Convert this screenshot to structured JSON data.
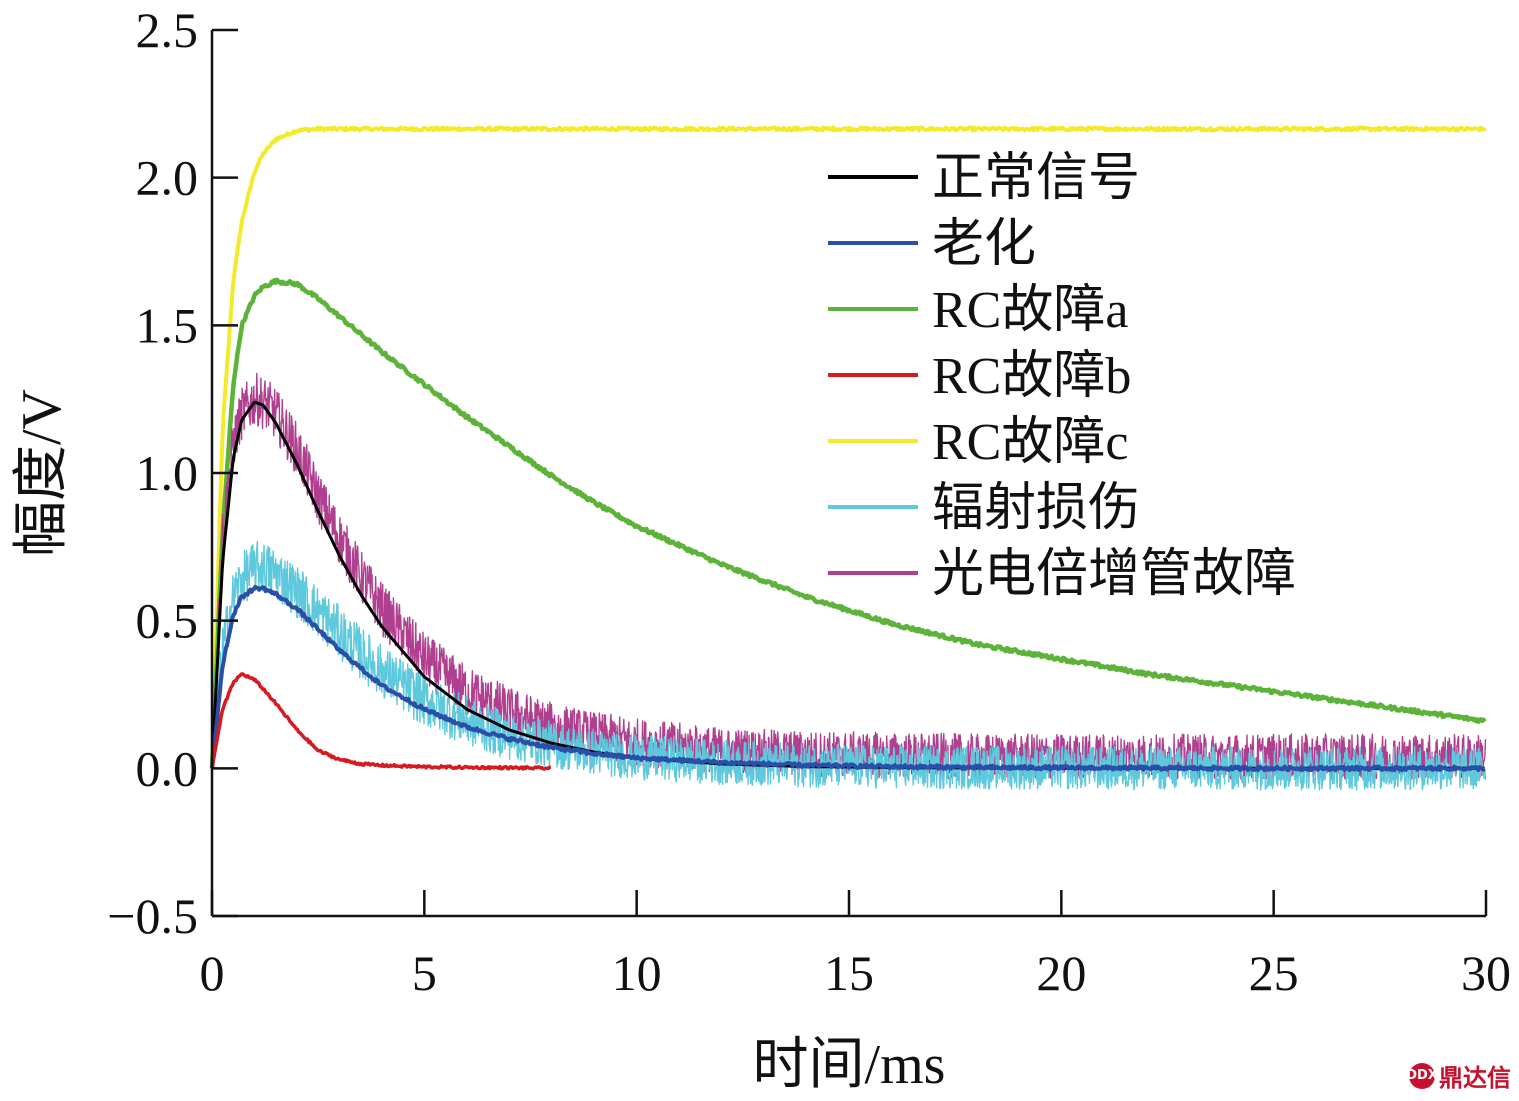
{
  "chart_data": {
    "type": "line",
    "title": "",
    "xlabel": "时间/ms",
    "ylabel": "幅度/V",
    "xlim": [
      0,
      30
    ],
    "ylim": [
      -0.5,
      2.5
    ],
    "xticks": [
      0,
      5,
      10,
      15,
      20,
      25,
      30
    ],
    "yticks": [
      -0.5,
      0.0,
      0.5,
      1.0,
      1.5,
      2.0,
      2.5
    ],
    "x_tick_labels": [
      "0",
      "5",
      "10",
      "15",
      "20",
      "25",
      "30"
    ],
    "y_tick_labels": [
      "−0.5",
      "0.0",
      "0.5",
      "1.0",
      "1.5",
      "2.0",
      "2.5"
    ],
    "grid": false,
    "legend_position": "top-right",
    "x": [
      0,
      0.25,
      0.5,
      0.7,
      1,
      1.2,
      1.5,
      2,
      2.5,
      3,
      3.5,
      4,
      5,
      6,
      7,
      8,
      9,
      10,
      12,
      14,
      16,
      18,
      20,
      22,
      24,
      26,
      28,
      30
    ],
    "series": [
      {
        "name": "正常信号",
        "color": "#000000",
        "noise": 0,
        "width": 3,
        "values": [
          0,
          0.7,
          1.05,
          1.18,
          1.24,
          1.23,
          1.17,
          1.03,
          0.87,
          0.72,
          0.59,
          0.48,
          0.31,
          0.2,
          0.13,
          0.085,
          0.055,
          0.035,
          0.015,
          0.006,
          0.003,
          0.001,
          0,
          0,
          0,
          0,
          0,
          0
        ]
      },
      {
        "name": "老化",
        "color": "#2a4fa8",
        "noise": 0.006,
        "width": 4,
        "values": [
          0,
          0.35,
          0.52,
          0.58,
          0.61,
          0.61,
          0.59,
          0.54,
          0.47,
          0.4,
          0.34,
          0.28,
          0.2,
          0.14,
          0.1,
          0.07,
          0.05,
          0.035,
          0.02,
          0.01,
          0.006,
          0.003,
          0.002,
          0.001,
          0,
          0,
          0,
          0
        ]
      },
      {
        "name": "RC故障a",
        "color": "#5db33a",
        "noise": 0.006,
        "width": 4.5,
        "values": [
          0,
          0.8,
          1.3,
          1.5,
          1.6,
          1.63,
          1.65,
          1.64,
          1.59,
          1.53,
          1.47,
          1.41,
          1.3,
          1.19,
          1.09,
          0.99,
          0.9,
          0.82,
          0.69,
          0.58,
          0.49,
          0.42,
          0.37,
          0.32,
          0.28,
          0.24,
          0.2,
          0.16
        ]
      },
      {
        "name": "RC故障b",
        "color": "#d71920",
        "noise": 0.004,
        "width": 3.5,
        "values": [
          0,
          0.2,
          0.29,
          0.32,
          0.3,
          0.27,
          0.22,
          0.13,
          0.06,
          0.03,
          0.015,
          0.01,
          0.005,
          0.003,
          0.002,
          0,
          null,
          null,
          null,
          null,
          null,
          null,
          null,
          null,
          null,
          null,
          null,
          null
        ]
      },
      {
        "name": "RC故障c",
        "color": "#f2ea2b",
        "noise": 0.005,
        "width": 4,
        "values": [
          0,
          1.15,
          1.65,
          1.85,
          2.02,
          2.08,
          2.13,
          2.16,
          2.165,
          2.165,
          2.165,
          2.165,
          2.165,
          2.165,
          2.165,
          2.165,
          2.165,
          2.165,
          2.165,
          2.165,
          2.165,
          2.165,
          2.165,
          2.165,
          2.165,
          2.165,
          2.165,
          2.165
        ]
      },
      {
        "name": "辐射损伤",
        "color": "#5ec8dc",
        "noise": 0.09,
        "width": 1.4,
        "values": [
          0,
          0.4,
          0.58,
          0.64,
          0.68,
          0.68,
          0.66,
          0.6,
          0.53,
          0.46,
          0.39,
          0.33,
          0.23,
          0.16,
          0.11,
          0.08,
          0.055,
          0.038,
          0.02,
          0.01,
          0.005,
          0.003,
          0.002,
          0.001,
          0,
          0,
          0,
          0
        ]
      },
      {
        "name": "光电倍增管故障",
        "color": "#b0408f",
        "noise": 0.09,
        "width": 1.4,
        "values": [
          0,
          0.8,
          1.1,
          1.2,
          1.25,
          1.24,
          1.2,
          1.08,
          0.92,
          0.78,
          0.65,
          0.54,
          0.37,
          0.26,
          0.19,
          0.14,
          0.11,
          0.09,
          0.06,
          0.05,
          0.045,
          0.04,
          0.04,
          0.04,
          0.04,
          0.04,
          0.04,
          0.04
        ]
      }
    ],
    "draw_order": [
      4,
      2,
      6,
      5,
      0,
      1,
      3
    ]
  },
  "watermark": {
    "logo_text": "DDX",
    "text": "鼎达信"
  }
}
